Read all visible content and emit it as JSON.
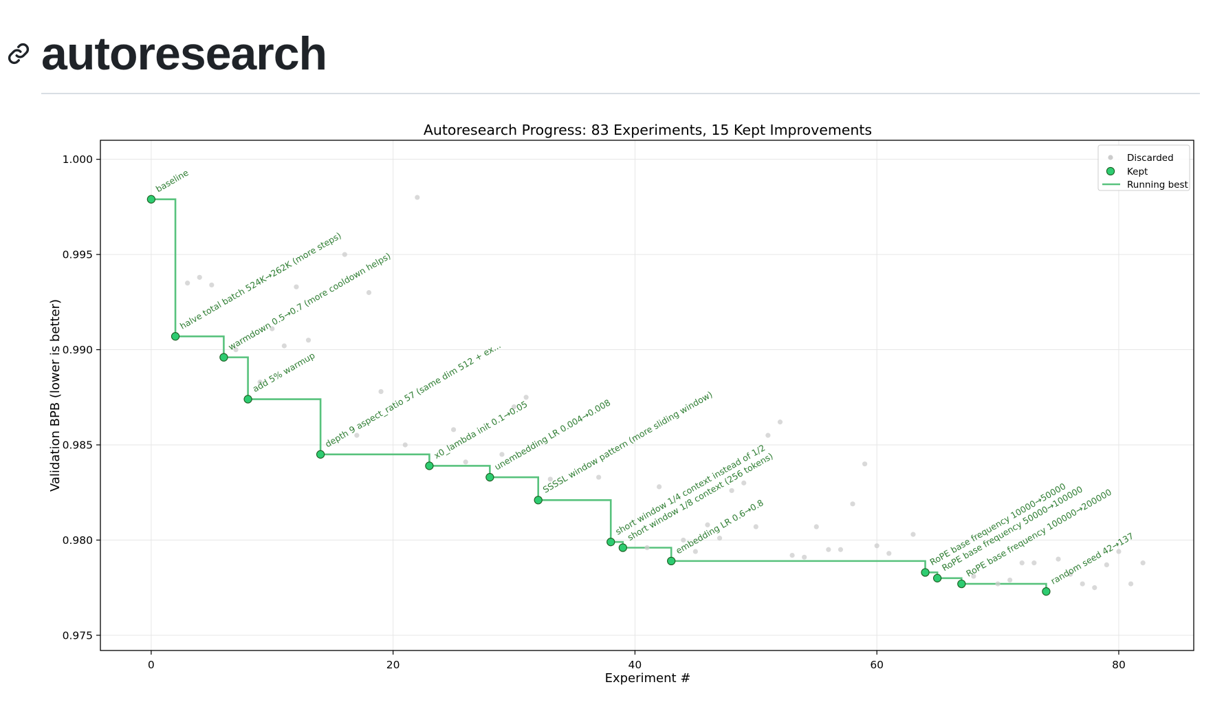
{
  "page": {
    "title": "autoresearch",
    "anchor_icon": "link-icon"
  },
  "chart_data": {
    "type": "scatter",
    "title": "Autoresearch Progress: 83 Experiments, 15 Kept Improvements",
    "xlabel": "Experiment #",
    "ylabel": "Validation BPB (lower is better)",
    "xlim": [
      -4.2,
      86.2
    ],
    "ylim": [
      0.9742,
      1.001
    ],
    "x_ticks": [
      0,
      20,
      40,
      60,
      80
    ],
    "y_ticks": [
      0.975,
      0.98,
      0.985,
      0.99,
      0.995,
      1.0
    ],
    "y_tick_labels": [
      "0.975",
      "0.980",
      "0.985",
      "0.990",
      "0.995",
      "1.000"
    ],
    "grid": true,
    "legend": {
      "placement": "top-right",
      "entries": [
        "Discarded",
        "Kept",
        "Running best"
      ]
    },
    "colors": {
      "kept": "#2ecc71",
      "kept_edge": "#1b5e20",
      "running_best": "#58c27d",
      "discarded": "#cccccc",
      "annotation": "#2e7d32"
    },
    "series": [
      {
        "name": "Kept",
        "points": [
          {
            "x": 0,
            "y": 0.9979,
            "label": "baseline"
          },
          {
            "x": 2,
            "y": 0.9907,
            "label": "halve total batch 524K→262K (more steps)"
          },
          {
            "x": 6,
            "y": 0.9896,
            "label": "warmdown 0.5→0.7 (more cooldown helps)"
          },
          {
            "x": 8,
            "y": 0.9874,
            "label": "add 5% warmup"
          },
          {
            "x": 14,
            "y": 0.9845,
            "label": "depth 9 aspect_ratio 57 (same dim 512 + ex..."
          },
          {
            "x": 23,
            "y": 0.9839,
            "label": "x0_lambda init 0.1→0.05"
          },
          {
            "x": 28,
            "y": 0.9833,
            "label": "unembedding LR 0.004→0.008"
          },
          {
            "x": 32,
            "y": 0.9821,
            "label": "SSSSL window pattern (more sliding window)"
          },
          {
            "x": 38,
            "y": 0.9799,
            "label": "short window 1/4 context instead of 1/2"
          },
          {
            "x": 39,
            "y": 0.9796,
            "label": "short window 1/8 context (256 tokens)"
          },
          {
            "x": 43,
            "y": 0.9789,
            "label": "embedding LR 0.6→0.8"
          },
          {
            "x": 64,
            "y": 0.9783,
            "label": "RoPE base frequency 10000→50000"
          },
          {
            "x": 65,
            "y": 0.978,
            "label": "RoPE base frequency 50000→100000"
          },
          {
            "x": 67,
            "y": 0.9777,
            "label": "RoPE base frequency 100000→200000"
          },
          {
            "x": 74,
            "y": 0.9773,
            "label": "random seed 42→137"
          }
        ]
      },
      {
        "name": "Discarded",
        "points": [
          {
            "x": 3,
            "y": 0.9935
          },
          {
            "x": 4,
            "y": 0.9938
          },
          {
            "x": 5,
            "y": 0.9934
          },
          {
            "x": 7,
            "y": 0.99
          },
          {
            "x": 9,
            "y": 0.9883
          },
          {
            "x": 10,
            "y": 0.9911
          },
          {
            "x": 11,
            "y": 0.9902
          },
          {
            "x": 12,
            "y": 0.9933
          },
          {
            "x": 13,
            "y": 0.9905
          },
          {
            "x": 16,
            "y": 0.995
          },
          {
            "x": 17,
            "y": 0.9855
          },
          {
            "x": 18,
            "y": 0.993
          },
          {
            "x": 19,
            "y": 0.9878
          },
          {
            "x": 21,
            "y": 0.985
          },
          {
            "x": 22,
            "y": 0.998
          },
          {
            "x": 25,
            "y": 0.9858
          },
          {
            "x": 26,
            "y": 0.9841
          },
          {
            "x": 29,
            "y": 0.9845
          },
          {
            "x": 30,
            "y": 0.987
          },
          {
            "x": 31,
            "y": 0.9875
          },
          {
            "x": 33,
            "y": 0.9832
          },
          {
            "x": 37,
            "y": 0.9833
          },
          {
            "x": 41,
            "y": 0.9796
          },
          {
            "x": 42,
            "y": 0.9828
          },
          {
            "x": 44,
            "y": 0.98
          },
          {
            "x": 45,
            "y": 0.9794
          },
          {
            "x": 46,
            "y": 0.9808
          },
          {
            "x": 47,
            "y": 0.9801
          },
          {
            "x": 48,
            "y": 0.9826
          },
          {
            "x": 49,
            "y": 0.983
          },
          {
            "x": 50,
            "y": 0.9807
          },
          {
            "x": 51,
            "y": 0.9855
          },
          {
            "x": 52,
            "y": 0.9862
          },
          {
            "x": 53,
            "y": 0.9792
          },
          {
            "x": 54,
            "y": 0.9791
          },
          {
            "x": 55,
            "y": 0.9807
          },
          {
            "x": 56,
            "y": 0.9795
          },
          {
            "x": 57,
            "y": 0.9795
          },
          {
            "x": 58,
            "y": 0.9819
          },
          {
            "x": 59,
            "y": 0.984
          },
          {
            "x": 60,
            "y": 0.9797
          },
          {
            "x": 61,
            "y": 0.9793
          },
          {
            "x": 63,
            "y": 0.9803
          },
          {
            "x": 68,
            "y": 0.9781
          },
          {
            "x": 70,
            "y": 0.9777
          },
          {
            "x": 71,
            "y": 0.9779
          },
          {
            "x": 72,
            "y": 0.9788
          },
          {
            "x": 73,
            "y": 0.9788
          },
          {
            "x": 75,
            "y": 0.979
          },
          {
            "x": 76,
            "y": 0.9782
          },
          {
            "x": 77,
            "y": 0.9777
          },
          {
            "x": 78,
            "y": 0.9775
          },
          {
            "x": 79,
            "y": 0.9787
          },
          {
            "x": 80,
            "y": 0.9794
          },
          {
            "x": 81,
            "y": 0.9777
          },
          {
            "x": 82,
            "y": 0.9788
          }
        ]
      },
      {
        "name": "Running best",
        "type": "step",
        "x_end": 74
      }
    ]
  }
}
